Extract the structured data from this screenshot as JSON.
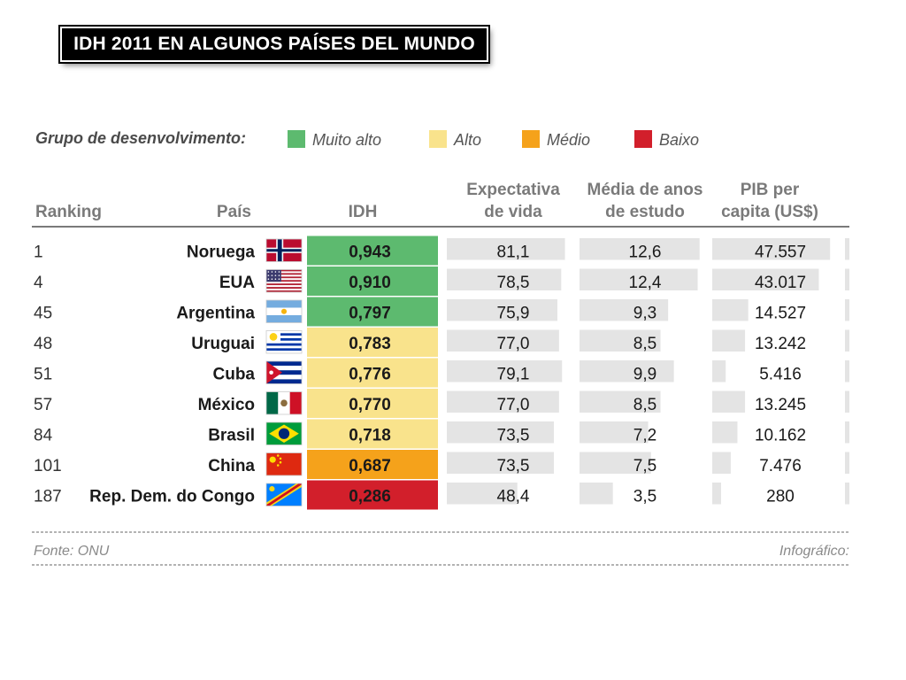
{
  "slide_title": "IDH 2011 EN ALGUNOS PAÍSES DEL MUNDO",
  "chart_data": {
    "type": "table",
    "legend": {
      "label": "Grupo de desenvolvimento:",
      "items": [
        {
          "label": "Muito alto",
          "color": "#5dba6f"
        },
        {
          "label": "Alto",
          "color": "#f9e38c"
        },
        {
          "label": "Médio",
          "color": "#f5a21b"
        },
        {
          "label": "Baixo",
          "color": "#d21f2b"
        }
      ]
    },
    "headers": {
      "ranking": "Ranking",
      "pais": "País",
      "idh": "IDH",
      "expectativa": [
        "Expectativa",
        "de vida"
      ],
      "estudo": [
        "Média de anos",
        "de estudo"
      ],
      "pib": [
        "PIB per",
        "capita (US$)"
      ]
    },
    "bar_scales": {
      "expectativa": 85,
      "estudo": 13,
      "pib": 50000
    },
    "rows": [
      {
        "rank": "1",
        "country": "Noruega",
        "flag": "norway-flag",
        "idh": "0,943",
        "group": "Muito alto",
        "expectativa": "81,1",
        "estudo": "12,6",
        "pib": "47.557",
        "expectativa_value": 81.1,
        "estudo_value": 12.6,
        "pib_value": 47557
      },
      {
        "rank": "4",
        "country": "EUA",
        "flag": "usa-flag",
        "idh": "0,910",
        "group": "Muito alto",
        "expectativa": "78,5",
        "estudo": "12,4",
        "pib": "43.017",
        "expectativa_value": 78.5,
        "estudo_value": 12.4,
        "pib_value": 43017
      },
      {
        "rank": "45",
        "country": "Argentina",
        "flag": "argentina-flag",
        "idh": "0,797",
        "group": "Muito alto",
        "expectativa": "75,9",
        "estudo": "9,3",
        "pib": "14.527",
        "expectativa_value": 75.9,
        "estudo_value": 9.3,
        "pib_value": 14527
      },
      {
        "rank": "48",
        "country": "Uruguai",
        "flag": "uruguay-flag",
        "idh": "0,783",
        "group": "Alto",
        "expectativa": "77,0",
        "estudo": "8,5",
        "pib": "13.242",
        "expectativa_value": 77.0,
        "estudo_value": 8.5,
        "pib_value": 13242
      },
      {
        "rank": "51",
        "country": "Cuba",
        "flag": "cuba-flag",
        "idh": "0,776",
        "group": "Alto",
        "expectativa": "79,1",
        "estudo": "9,9",
        "pib": "5.416",
        "expectativa_value": 79.1,
        "estudo_value": 9.9,
        "pib_value": 5416
      },
      {
        "rank": "57",
        "country": "México",
        "flag": "mexico-flag",
        "idh": "0,770",
        "group": "Alto",
        "expectativa": "77,0",
        "estudo": "8,5",
        "pib": "13.245",
        "expectativa_value": 77.0,
        "estudo_value": 8.5,
        "pib_value": 13245
      },
      {
        "rank": "84",
        "country": "Brasil",
        "flag": "brazil-flag",
        "idh": "0,718",
        "group": "Alto",
        "expectativa": "73,5",
        "estudo": "7,2",
        "pib": "10.162",
        "expectativa_value": 73.5,
        "estudo_value": 7.2,
        "pib_value": 10162
      },
      {
        "rank": "101",
        "country": "China",
        "flag": "china-flag",
        "idh": "0,687",
        "group": "Médio",
        "expectativa": "73,5",
        "estudo": "7,5",
        "pib": "7.476",
        "expectativa_value": 73.5,
        "estudo_value": 7.5,
        "pib_value": 7476
      },
      {
        "rank": "187",
        "country": "Rep. Dem. do Congo",
        "flag": "dr-congo-flag",
        "idh": "0,286",
        "group": "Baixo",
        "expectativa": "48,4",
        "estudo": "3,5",
        "pib": "280",
        "expectativa_value": 48.4,
        "estudo_value": 3.5,
        "pib_value": 280
      }
    ],
    "footer": {
      "source": "Fonte: ONU",
      "credit": "Infográfico:"
    }
  }
}
